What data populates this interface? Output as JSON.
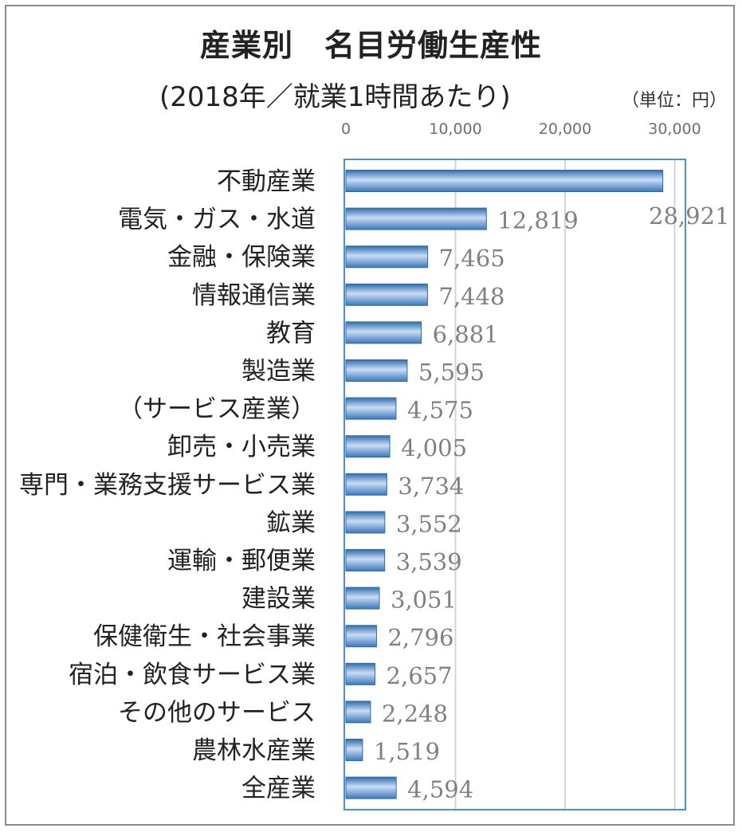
{
  "chart_data": {
    "type": "bar",
    "orientation": "horizontal",
    "title": "産業別　名目労働生産性",
    "subtitle": "(2018年／就業1時間あたり)",
    "unit_label": "（単位：円）",
    "xlim": [
      0,
      30000
    ],
    "xticks": [
      0,
      10000,
      20000,
      30000
    ],
    "xtick_labels": [
      "0",
      "10,000",
      "20,000",
      "30,000"
    ],
    "grid": true,
    "legend": "none",
    "bar_color": "#5b8ec9",
    "categories": [
      "不動産業",
      "電気・ガス・水道",
      "金融・保険業",
      "情報通信業",
      "教育",
      "製造業",
      "（サービス産業）",
      "卸売・小売業",
      "専門・業務支援サービス業",
      "鉱業",
      "運輸・郵便業",
      "建設業",
      "保健衛生・社会事業",
      "宿泊・飲食サービス業",
      "その他のサービス",
      "農林水産業",
      "全産業"
    ],
    "values": [
      28921,
      12819,
      7465,
      7448,
      6881,
      5595,
      4575,
      4005,
      3734,
      3552,
      3539,
      3051,
      2796,
      2657,
      2248,
      1519,
      4594
    ],
    "value_labels": [
      "28,921",
      "12,819",
      "7,465",
      "7,448",
      "6,881",
      "5,595",
      "4,575",
      "4,005",
      "3,734",
      "3,552",
      "3,539",
      "3,051",
      "2,796",
      "2,657",
      "2,248",
      "1,519",
      "4,594"
    ]
  }
}
